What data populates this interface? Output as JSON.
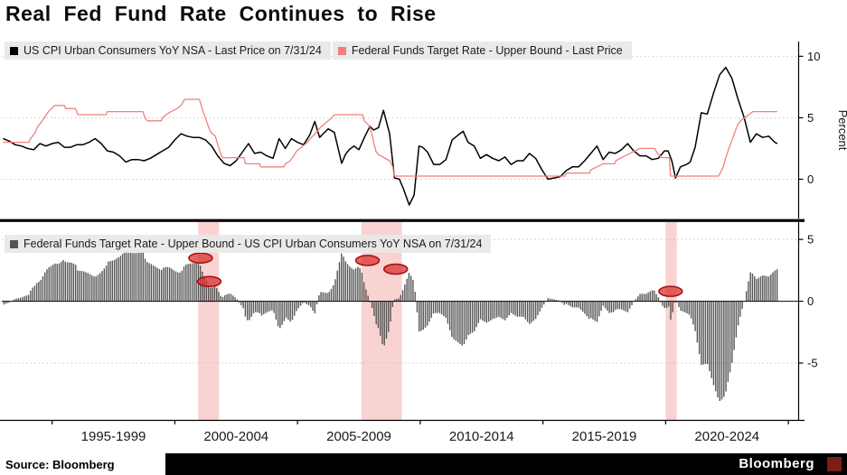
{
  "title": "Real Fed Fund Rate Continues to Rise",
  "footer": {
    "source": "Source: Bloomberg",
    "brand": "Bloomberg"
  },
  "colors": {
    "cpi_line": "#000000",
    "fed_line": "#f0807f",
    "bar": "#555555",
    "recession_band": "#f5b4b4",
    "annotation_fill": "#d63230",
    "annotation_stroke": "#a50d0c",
    "grid": "#c8c8c8",
    "axis": "#000000",
    "legend_bg": "#e8e8e8"
  },
  "chart_data": [
    {
      "type": "line",
      "panel": "top",
      "legend": [
        {
          "label": "US CPI Urban Consumers YoY NSA - Last Price on 7/31/24",
          "color": "#000000"
        },
        {
          "label": "Federal Funds Target Rate - Upper Bound - Last Price",
          "color": "#f0807f"
        }
      ],
      "ylabel": "Percent",
      "yticks": [
        0,
        5,
        10
      ],
      "ylim": [
        -3.2,
        11.2
      ],
      "xlim": [
        1992.95,
        2025.4
      ],
      "series": [
        {
          "name": "US CPI Urban Consumers YoY NSA",
          "color": "#000000",
          "points": [
            [
              1993.0,
              3.3
            ],
            [
              1993.25,
              3.1
            ],
            [
              1993.5,
              2.8
            ],
            [
              1993.75,
              2.7
            ],
            [
              1994.0,
              2.5
            ],
            [
              1994.25,
              2.4
            ],
            [
              1994.5,
              2.9
            ],
            [
              1994.75,
              2.7
            ],
            [
              1995.0,
              2.9
            ],
            [
              1995.25,
              3.0
            ],
            [
              1995.5,
              2.6
            ],
            [
              1995.75,
              2.6
            ],
            [
              1996.0,
              2.8
            ],
            [
              1996.25,
              2.8
            ],
            [
              1996.5,
              3.0
            ],
            [
              1996.75,
              3.3
            ],
            [
              1997.0,
              2.9
            ],
            [
              1997.25,
              2.3
            ],
            [
              1997.5,
              2.2
            ],
            [
              1997.75,
              1.9
            ],
            [
              1998.0,
              1.4
            ],
            [
              1998.25,
              1.6
            ],
            [
              1998.5,
              1.6
            ],
            [
              1998.75,
              1.5
            ],
            [
              1999.0,
              1.7
            ],
            [
              1999.25,
              2.0
            ],
            [
              1999.5,
              2.3
            ],
            [
              1999.75,
              2.6
            ],
            [
              2000.0,
              3.2
            ],
            [
              2000.25,
              3.7
            ],
            [
              2000.5,
              3.5
            ],
            [
              2000.75,
              3.4
            ],
            [
              2001.0,
              3.4
            ],
            [
              2001.25,
              3.2
            ],
            [
              2001.5,
              2.7
            ],
            [
              2001.75,
              1.9
            ],
            [
              2002.0,
              1.3
            ],
            [
              2002.25,
              1.1
            ],
            [
              2002.5,
              1.5
            ],
            [
              2002.75,
              2.2
            ],
            [
              2003.0,
              2.9
            ],
            [
              2003.25,
              2.1
            ],
            [
              2003.5,
              2.2
            ],
            [
              2003.75,
              1.9
            ],
            [
              2004.0,
              1.7
            ],
            [
              2004.25,
              3.3
            ],
            [
              2004.5,
              2.5
            ],
            [
              2004.75,
              3.3
            ],
            [
              2005.0,
              3.0
            ],
            [
              2005.25,
              2.8
            ],
            [
              2005.5,
              3.6
            ],
            [
              2005.7,
              4.7
            ],
            [
              2005.9,
              3.4
            ],
            [
              2006.0,
              3.6
            ],
            [
              2006.25,
              4.1
            ],
            [
              2006.5,
              3.8
            ],
            [
              2006.8,
              1.3
            ],
            [
              2006.95,
              2.0
            ],
            [
              2007.1,
              2.4
            ],
            [
              2007.3,
              2.7
            ],
            [
              2007.5,
              2.4
            ],
            [
              2007.75,
              3.5
            ],
            [
              2007.95,
              4.3
            ],
            [
              2008.1,
              4.0
            ],
            [
              2008.3,
              4.2
            ],
            [
              2008.5,
              5.6
            ],
            [
              2008.75,
              3.7
            ],
            [
              2008.95,
              0.1
            ],
            [
              2009.15,
              0.0
            ],
            [
              2009.3,
              -0.7
            ],
            [
              2009.55,
              -2.1
            ],
            [
              2009.75,
              -1.3
            ],
            [
              2009.95,
              2.7
            ],
            [
              2010.1,
              2.6
            ],
            [
              2010.3,
              2.2
            ],
            [
              2010.55,
              1.2
            ],
            [
              2010.8,
              1.2
            ],
            [
              2011.05,
              1.6
            ],
            [
              2011.3,
              3.2
            ],
            [
              2011.55,
              3.6
            ],
            [
              2011.75,
              3.9
            ],
            [
              2011.95,
              3.0
            ],
            [
              2012.2,
              2.7
            ],
            [
              2012.45,
              1.7
            ],
            [
              2012.7,
              2.0
            ],
            [
              2012.95,
              1.7
            ],
            [
              2013.2,
              1.5
            ],
            [
              2013.45,
              1.8
            ],
            [
              2013.7,
              1.2
            ],
            [
              2013.95,
              1.5
            ],
            [
              2014.2,
              1.5
            ],
            [
              2014.45,
              2.1
            ],
            [
              2014.7,
              1.7
            ],
            [
              2014.95,
              0.8
            ],
            [
              2015.2,
              0.0
            ],
            [
              2015.45,
              0.1
            ],
            [
              2015.7,
              0.2
            ],
            [
              2015.95,
              0.7
            ],
            [
              2016.2,
              1.0
            ],
            [
              2016.45,
              1.0
            ],
            [
              2016.7,
              1.5
            ],
            [
              2016.95,
              2.1
            ],
            [
              2017.2,
              2.7
            ],
            [
              2017.45,
              1.6
            ],
            [
              2017.7,
              2.2
            ],
            [
              2017.95,
              2.1
            ],
            [
              2018.2,
              2.4
            ],
            [
              2018.45,
              2.9
            ],
            [
              2018.7,
              2.3
            ],
            [
              2018.95,
              1.9
            ],
            [
              2019.2,
              1.9
            ],
            [
              2019.45,
              1.6
            ],
            [
              2019.7,
              1.7
            ],
            [
              2019.95,
              2.3
            ],
            [
              2020.1,
              2.3
            ],
            [
              2020.25,
              1.5
            ],
            [
              2020.4,
              0.1
            ],
            [
              2020.6,
              1.0
            ],
            [
              2020.85,
              1.2
            ],
            [
              2021.0,
              1.4
            ],
            [
              2021.2,
              2.6
            ],
            [
              2021.45,
              5.4
            ],
            [
              2021.7,
              5.3
            ],
            [
              2021.95,
              7.0
            ],
            [
              2022.2,
              8.5
            ],
            [
              2022.45,
              9.1
            ],
            [
              2022.7,
              8.2
            ],
            [
              2022.95,
              6.5
            ],
            [
              2023.2,
              5.0
            ],
            [
              2023.45,
              3.0
            ],
            [
              2023.7,
              3.7
            ],
            [
              2023.95,
              3.4
            ],
            [
              2024.2,
              3.5
            ],
            [
              2024.45,
              3.0
            ],
            [
              2024.55,
              2.9
            ]
          ]
        },
        {
          "name": "Federal Funds Target Rate - Upper Bound",
          "color": "#f0807f",
          "points": [
            [
              1993.0,
              3.0
            ],
            [
              1994.05,
              3.0
            ],
            [
              1994.1,
              3.25
            ],
            [
              1994.3,
              3.75
            ],
            [
              1994.4,
              4.25
            ],
            [
              1994.6,
              4.75
            ],
            [
              1994.85,
              5.5
            ],
            [
              1995.1,
              6.0
            ],
            [
              1995.5,
              6.0
            ],
            [
              1995.55,
              5.75
            ],
            [
              1995.95,
              5.75
            ],
            [
              1996.05,
              5.25
            ],
            [
              1997.2,
              5.25
            ],
            [
              1997.25,
              5.5
            ],
            [
              1998.7,
              5.5
            ],
            [
              1998.78,
              5.0
            ],
            [
              1998.88,
              4.75
            ],
            [
              1999.45,
              4.75
            ],
            [
              1999.5,
              5.0
            ],
            [
              1999.65,
              5.25
            ],
            [
              1999.85,
              5.5
            ],
            [
              2000.1,
              5.75
            ],
            [
              2000.25,
              6.0
            ],
            [
              2000.4,
              6.5
            ],
            [
              2001.0,
              6.5
            ],
            [
              2001.08,
              6.0
            ],
            [
              2001.15,
              5.5
            ],
            [
              2001.25,
              5.0
            ],
            [
              2001.33,
              4.5
            ],
            [
              2001.42,
              4.0
            ],
            [
              2001.5,
              3.75
            ],
            [
              2001.65,
              3.5
            ],
            [
              2001.72,
              3.0
            ],
            [
              2001.8,
              2.5
            ],
            [
              2001.88,
              2.0
            ],
            [
              2001.95,
              1.75
            ],
            [
              2002.82,
              1.75
            ],
            [
              2002.88,
              1.25
            ],
            [
              2003.45,
              1.25
            ],
            [
              2003.5,
              1.0
            ],
            [
              2004.45,
              1.0
            ],
            [
              2004.5,
              1.25
            ],
            [
              2004.7,
              1.5
            ],
            [
              2004.88,
              2.0
            ],
            [
              2004.95,
              2.25
            ],
            [
              2005.1,
              2.5
            ],
            [
              2005.25,
              2.75
            ],
            [
              2005.4,
              3.0
            ],
            [
              2005.5,
              3.25
            ],
            [
              2005.62,
              3.5
            ],
            [
              2005.85,
              4.0
            ],
            [
              2005.95,
              4.25
            ],
            [
              2006.1,
              4.5
            ],
            [
              2006.25,
              4.75
            ],
            [
              2006.4,
              5.0
            ],
            [
              2006.5,
              5.25
            ],
            [
              2007.65,
              5.25
            ],
            [
              2007.72,
              4.75
            ],
            [
              2007.85,
              4.5
            ],
            [
              2007.95,
              4.25
            ],
            [
              2008.05,
              3.5
            ],
            [
              2008.1,
              3.0
            ],
            [
              2008.2,
              2.25
            ],
            [
              2008.3,
              2.0
            ],
            [
              2008.75,
              1.5
            ],
            [
              2008.88,
              1.0
            ],
            [
              2008.95,
              0.25
            ],
            [
              2015.9,
              0.25
            ],
            [
              2015.95,
              0.5
            ],
            [
              2016.9,
              0.5
            ],
            [
              2016.95,
              0.75
            ],
            [
              2017.2,
              1.0
            ],
            [
              2017.45,
              1.25
            ],
            [
              2017.92,
              1.25
            ],
            [
              2017.97,
              1.5
            ],
            [
              2018.2,
              1.75
            ],
            [
              2018.45,
              2.0
            ],
            [
              2018.7,
              2.25
            ],
            [
              2018.95,
              2.5
            ],
            [
              2019.55,
              2.5
            ],
            [
              2019.62,
              2.25
            ],
            [
              2019.72,
              2.0
            ],
            [
              2019.82,
              1.75
            ],
            [
              2020.15,
              1.75
            ],
            [
              2020.2,
              0.25
            ],
            [
              2022.15,
              0.25
            ],
            [
              2022.22,
              0.5
            ],
            [
              2022.35,
              1.0
            ],
            [
              2022.45,
              1.75
            ],
            [
              2022.58,
              2.5
            ],
            [
              2022.72,
              3.25
            ],
            [
              2022.85,
              4.0
            ],
            [
              2022.95,
              4.5
            ],
            [
              2023.05,
              4.75
            ],
            [
              2023.22,
              5.0
            ],
            [
              2023.38,
              5.25
            ],
            [
              2023.55,
              5.5
            ],
            [
              2024.55,
              5.5
            ]
          ]
        }
      ]
    },
    {
      "type": "bar",
      "panel": "bottom",
      "legend": [
        {
          "label": "Federal Funds Target Rate - Upper Bound - US CPI Urban Consumers YoY NSA on 7/31/24",
          "color": "#555555"
        }
      ],
      "derivation": "fed_minus_cpi_monthly",
      "yticks": [
        -5,
        0,
        5
      ],
      "ylim": [
        -9.6,
        6.4
      ],
      "xlim": [
        1992.95,
        2025.4
      ],
      "bar_step_years": 0.08333,
      "recession_bands": [
        [
          2000.95,
          2001.8
        ],
        [
          2007.6,
          2009.25
        ],
        [
          2020.0,
          2020.45
        ]
      ],
      "annotations": [
        {
          "x": 2001.05,
          "y": 3.5
        },
        {
          "x": 2001.4,
          "y": 1.6
        },
        {
          "x": 2007.85,
          "y": 3.3
        },
        {
          "x": 2009.0,
          "y": 2.6
        },
        {
          "x": 2020.2,
          "y": 0.8
        }
      ],
      "xticks": [
        1995,
        2000,
        2005,
        2010,
        2015,
        2020,
        2025
      ],
      "xtick_labels": [
        {
          "x": 1997.5,
          "label": "1995-1999"
        },
        {
          "x": 2002.5,
          "label": "2000-2004"
        },
        {
          "x": 2007.5,
          "label": "2005-2009"
        },
        {
          "x": 2012.5,
          "label": "2010-2014"
        },
        {
          "x": 2017.5,
          "label": "2015-2019"
        },
        {
          "x": 2022.5,
          "label": "2020-2024"
        }
      ]
    }
  ]
}
